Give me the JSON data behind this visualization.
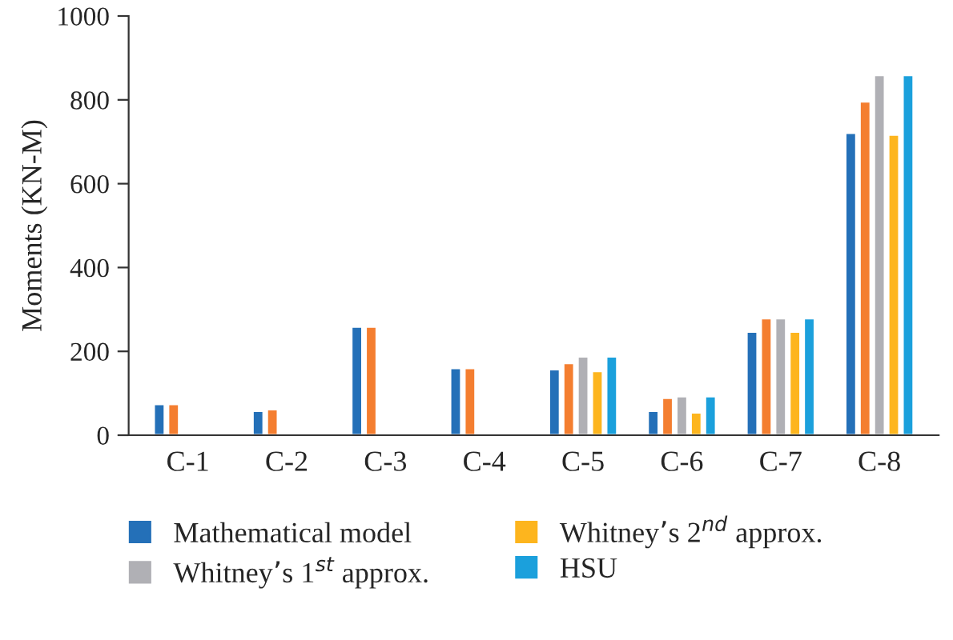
{
  "chart_data": {
    "type": "bar",
    "ylabel": "Moments (KN-M)",
    "categories": [
      "C-1",
      "C-2",
      "C-3",
      "C-4",
      "C-5",
      "C-6",
      "C-7",
      "C-8"
    ],
    "series": [
      {
        "name": "Mathematical model",
        "color": "#2470b8",
        "values": [
          74,
          58,
          259,
          160,
          157,
          58,
          247,
          721
        ]
      },
      {
        "color": "#f47e30",
        "values": [
          74,
          62,
          259,
          160,
          172,
          89,
          279,
          796
        ]
      },
      {
        "name": "Whitney’s 1$^{st}$ approx.",
        "color": "#b0b0b5",
        "values": [
          null,
          null,
          null,
          null,
          188,
          93,
          279,
          859
        ]
      },
      {
        "name": "Whitney’s 2$^{nd}$ approx.",
        "color": "#fdb51e",
        "values": [
          null,
          null,
          null,
          null,
          153,
          54,
          247,
          717
        ]
      },
      {
        "name": "HSU",
        "color": "#1ba0dc",
        "values": [
          null,
          null,
          null,
          null,
          188,
          93,
          279,
          859
        ]
      }
    ],
    "ylim": [
      0,
      1000
    ],
    "yticks": [
      0,
      200,
      400,
      600,
      800,
      1000
    ],
    "legend": "bottom",
    "grid": false
  }
}
